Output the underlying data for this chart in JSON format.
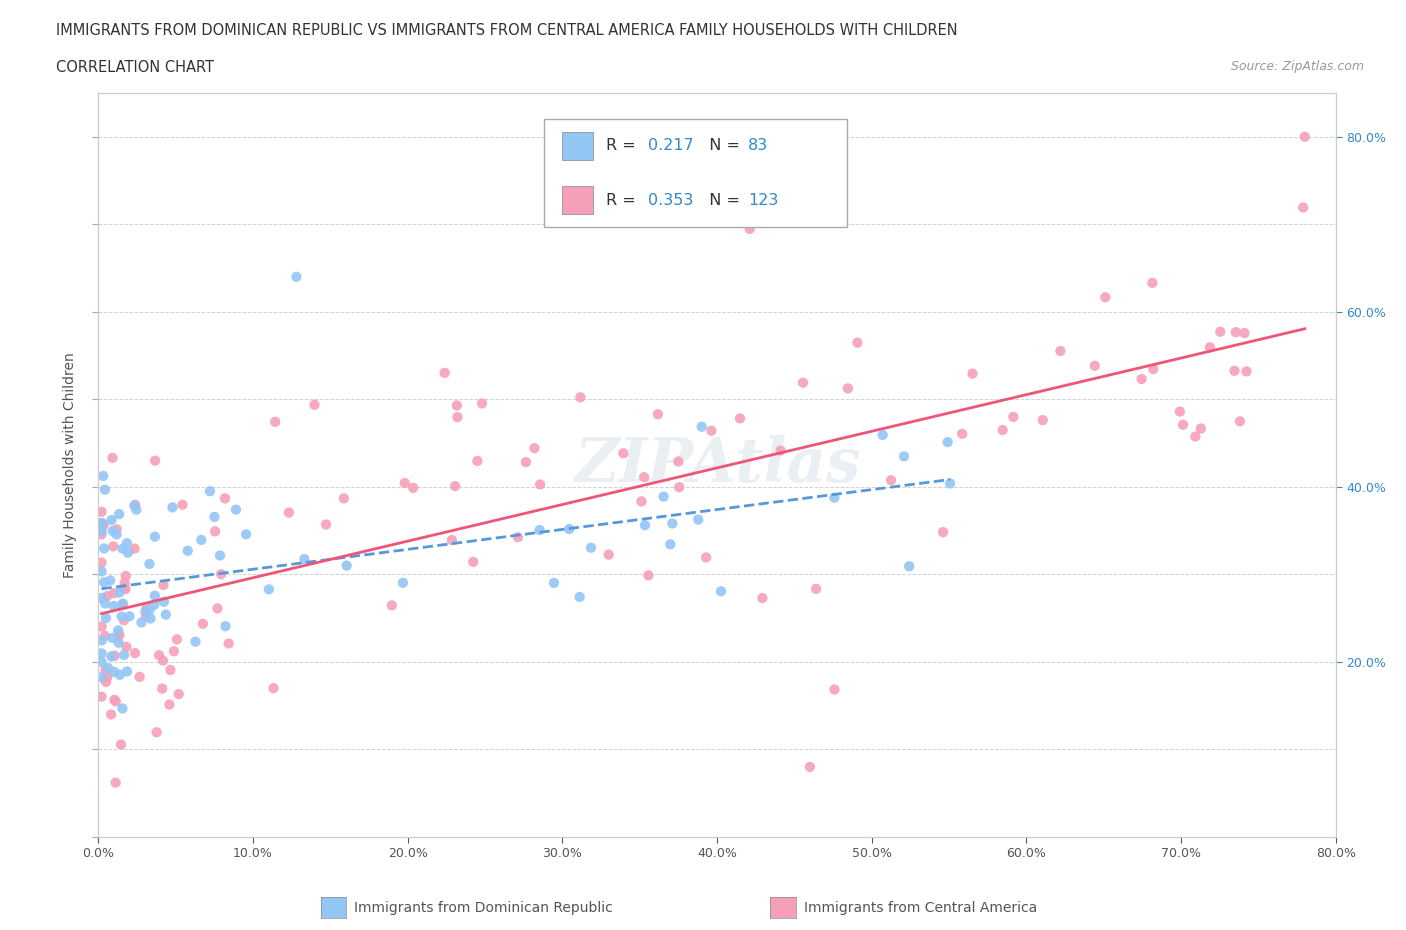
{
  "title": "IMMIGRANTS FROM DOMINICAN REPUBLIC VS IMMIGRANTS FROM CENTRAL AMERICA FAMILY HOUSEHOLDS WITH CHILDREN",
  "subtitle": "CORRELATION CHART",
  "source": "Source: ZipAtlas.com",
  "ylabel": "Family Households with Children",
  "r1": 0.217,
  "n1": 83,
  "r2": 0.353,
  "n2": 123,
  "color1": "#93c5f5",
  "color2": "#f5a0b8",
  "line_color1": "#5599dd",
  "line_color2": "#ee5577",
  "right_axis_color": "#3388cc",
  "xlim": [
    0.0,
    0.8
  ],
  "ylim": [
    0.0,
    0.85
  ],
  "xticks": [
    0.0,
    0.1,
    0.2,
    0.3,
    0.4,
    0.5,
    0.6,
    0.7,
    0.8
  ],
  "yticks_left": [],
  "yticks_right": [
    0.2,
    0.4,
    0.6,
    0.8
  ],
  "watermark": "ZIPAtlas",
  "seed1": 12,
  "seed2": 77
}
